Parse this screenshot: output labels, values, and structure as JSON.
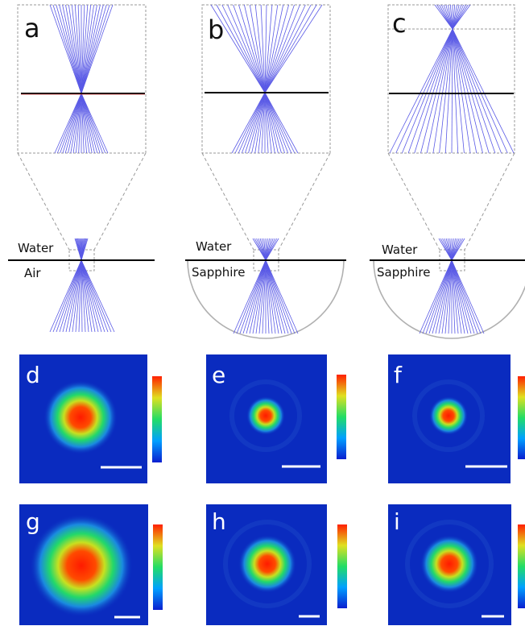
{
  "panels": {
    "a": {
      "label": "a",
      "upper_medium": "Water",
      "lower_medium": "Air"
    },
    "b": {
      "label": "b",
      "upper_medium": "Water",
      "lower_medium": "Sapphire"
    },
    "c": {
      "label": "c",
      "upper_medium": "Water",
      "lower_medium": "Sapphire"
    },
    "d": {
      "label": "d"
    },
    "e": {
      "label": "e"
    },
    "f": {
      "label": "f"
    },
    "g": {
      "label": "g"
    },
    "h": {
      "label": "h"
    },
    "i": {
      "label": "i"
    }
  },
  "colors": {
    "ray": "#5a5ae6",
    "interface": "#000000",
    "dashed": "#999999",
    "hemisphere": "#b0b0b0",
    "colormap_low": "#0a2bbf",
    "colormap_mid": "#22dd66",
    "colormap_high": "#ee2200"
  }
}
